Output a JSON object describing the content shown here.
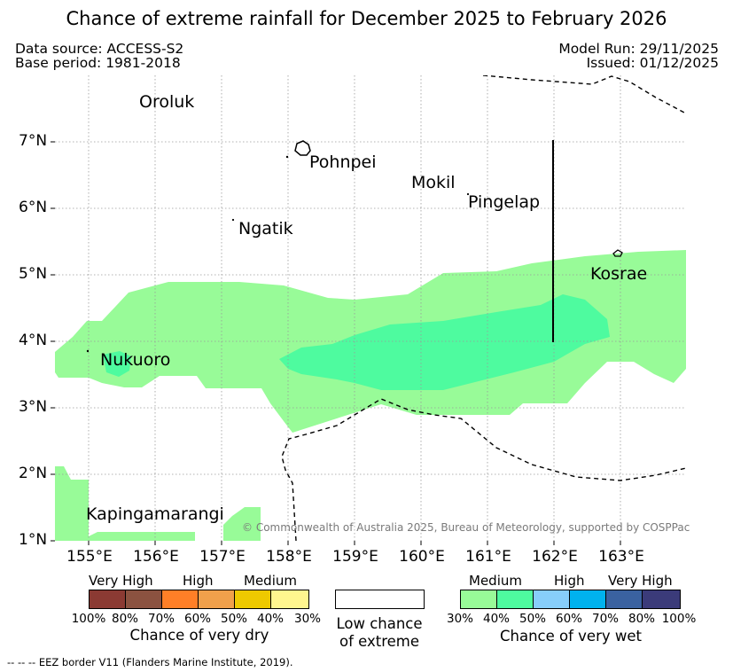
{
  "title": "Chance of extreme rainfall for December 2025 to February 2026",
  "meta": {
    "data_source": "Data source: ACCESS-S2",
    "base_period": "Base period: 1981-2018",
    "model_run": "Model Run: 29/11/2025",
    "issued": "Issued: 01/12/2025"
  },
  "map": {
    "lon_ticks": [
      "155°E",
      "156°E",
      "157°E",
      "158°E",
      "159°E",
      "160°E",
      "161°E",
      "162°E",
      "163°E"
    ],
    "lat_ticks": [
      "7°N",
      "6°N",
      "5°N",
      "4°N",
      "3°N",
      "2°N",
      "1°N"
    ],
    "places": {
      "oroluk": "Oroluk",
      "pohnpei": "Pohnpei",
      "mokil": "Mokil",
      "pingelap": "Pingelap",
      "ngatik": "Ngatik",
      "kosrae": "Kosrae",
      "nukuoro": "Nukuoro",
      "kapingamarangi": "Kapingamarangi"
    },
    "copyright": "© Commonwealth of Australia 2025, Bureau of Meteorology, supported by COSPPac",
    "colors": {
      "wet_medium": "#98fb98",
      "wet_medium_high": "#4efb9f"
    }
  },
  "legend": {
    "dry": {
      "categories": [
        "Very High",
        "High",
        "Medium"
      ],
      "percents": [
        "100%",
        "80%",
        "70%",
        "60%",
        "50%",
        "40%",
        "30%"
      ],
      "colors": [
        "#8b3a33",
        "#8b5240",
        "#ff7f27",
        "#f0a04b",
        "#eec900",
        "#fff68f"
      ],
      "caption": "Chance of very dry"
    },
    "low": {
      "line1": "Low chance",
      "line2": "of extreme"
    },
    "wet": {
      "categories": [
        "Medium",
        "High",
        "Very High"
      ],
      "percents": [
        "30%",
        "40%",
        "50%",
        "60%",
        "70%",
        "80%",
        "100%"
      ],
      "colors": [
        "#98fb98",
        "#4efb9f",
        "#87cefa",
        "#00b2ee",
        "#3a62a0",
        "#3b3b7a"
      ],
      "caption": "Chance of very wet"
    }
  },
  "footnote": "-- -- -- EEZ border V11 (Flanders Marine Institute, 2019)."
}
